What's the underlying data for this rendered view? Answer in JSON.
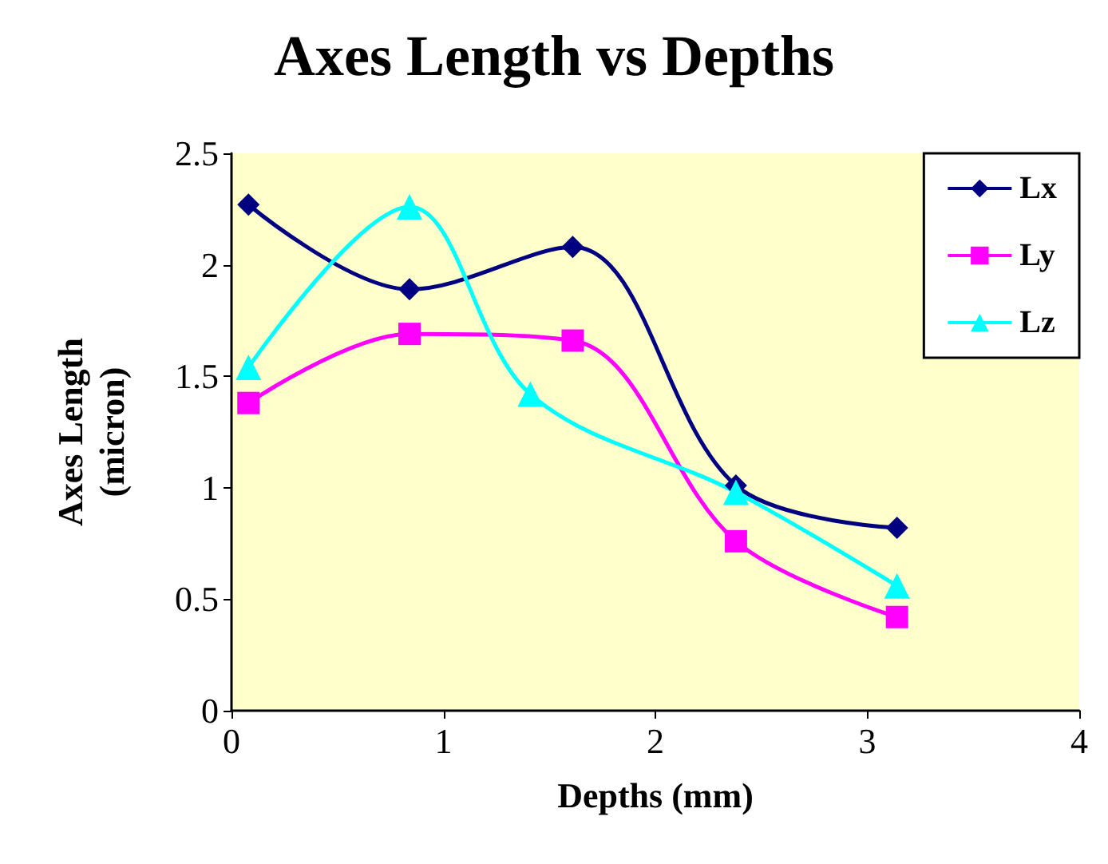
{
  "chart_data": {
    "type": "line",
    "title": "Axes Length vs Depths",
    "xlabel": "Depths (mm)",
    "ylabel": "Axes Length\n(micron)",
    "series": [
      {
        "name": "Lx",
        "color": "#000080",
        "marker": "diamond",
        "x": [
          0.08,
          0.84,
          1.61,
          2.38,
          3.14
        ],
        "values": [
          2.27,
          1.89,
          2.08,
          1.01,
          0.82
        ]
      },
      {
        "name": "Ly",
        "color": "#ff00ff",
        "marker": "square",
        "x": [
          0.08,
          0.84,
          1.61,
          2.38,
          3.14
        ],
        "values": [
          1.38,
          1.69,
          1.66,
          0.76,
          0.42
        ]
      },
      {
        "name": "Lz",
        "color": "#00ffff",
        "marker": "triangle",
        "x": [
          0.08,
          0.84,
          1.41,
          2.38,
          3.14
        ],
        "values": [
          1.54,
          2.26,
          1.42,
          0.98,
          0.56
        ]
      }
    ],
    "xlim": [
      0,
      4
    ],
    "xticks": [
      0,
      1,
      2,
      3,
      4
    ],
    "ylim": [
      0,
      2.5
    ],
    "yticks": [
      0,
      0.5,
      1,
      1.5,
      2,
      2.5
    ],
    "grid": false,
    "legend": "top right",
    "line_style": "solid"
  }
}
